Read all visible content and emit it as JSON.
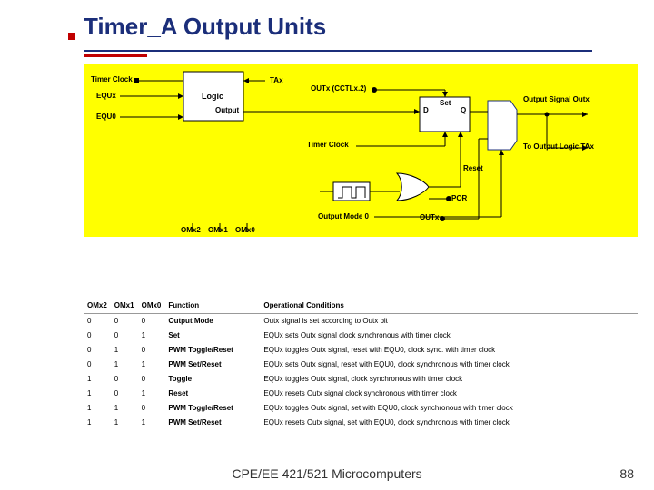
{
  "title": "Timer_A Output Units",
  "diagram": {
    "bg": "#ffff00",
    "labels": {
      "timerClock": "Timer Clock",
      "equx": "EQUx",
      "equ0": "EQU0",
      "logic": "Logic",
      "tax": "TAx",
      "output": "Output",
      "outx_cctl": "OUTx (CCTLx.2)",
      "d": "D",
      "q": "Q",
      "set": "Set",
      "outputSignal": "Output Signal Outx",
      "timerClock2": "Timer Clock",
      "toOutputLogic": "To Output Logic TAx",
      "reset": "Reset",
      "por": "POR",
      "outMode0": "Output Mode 0",
      "outx": "OUTx",
      "om2": "OMx2",
      "om1": "OMx1",
      "om0": "OMx0"
    }
  },
  "table": {
    "headers": [
      "OMx2",
      "OMx1",
      "OMx0",
      "Function",
      "Operational Conditions"
    ],
    "rows": [
      [
        "0",
        "0",
        "0",
        "Output Mode",
        "Outx signal is set according to Outx bit"
      ],
      [
        "0",
        "0",
        "1",
        "Set",
        "EQUx sets Outx signal clock synchronous with timer clock"
      ],
      [
        "0",
        "1",
        "0",
        "PWM Toggle/Reset",
        "EQUx toggles Outx signal, reset with EQU0, clock sync. with timer clock"
      ],
      [
        "0",
        "1",
        "1",
        "PWM Set/Reset",
        "EQUx sets Outx signal, reset with EQU0, clock synchronous with timer clock"
      ],
      [
        "1",
        "0",
        "0",
        "Toggle",
        "EQUx toggles Outx signal, clock synchronous with timer clock"
      ],
      [
        "1",
        "0",
        "1",
        "Reset",
        "EQUx resets Outx signal clock synchronous with timer clock"
      ],
      [
        "1",
        "1",
        "0",
        "PWM Toggle/Reset",
        "EQUx toggles Outx signal, set with EQU0, clock synchronous with timer clock"
      ],
      [
        "1",
        "1",
        "1",
        "PWM Set/Reset",
        "EQUx resets Outx signal, set with EQU0, clock synchronous with timer clock"
      ]
    ]
  },
  "footer": "CPE/EE 421/521 Microcomputers",
  "pageNum": "88"
}
